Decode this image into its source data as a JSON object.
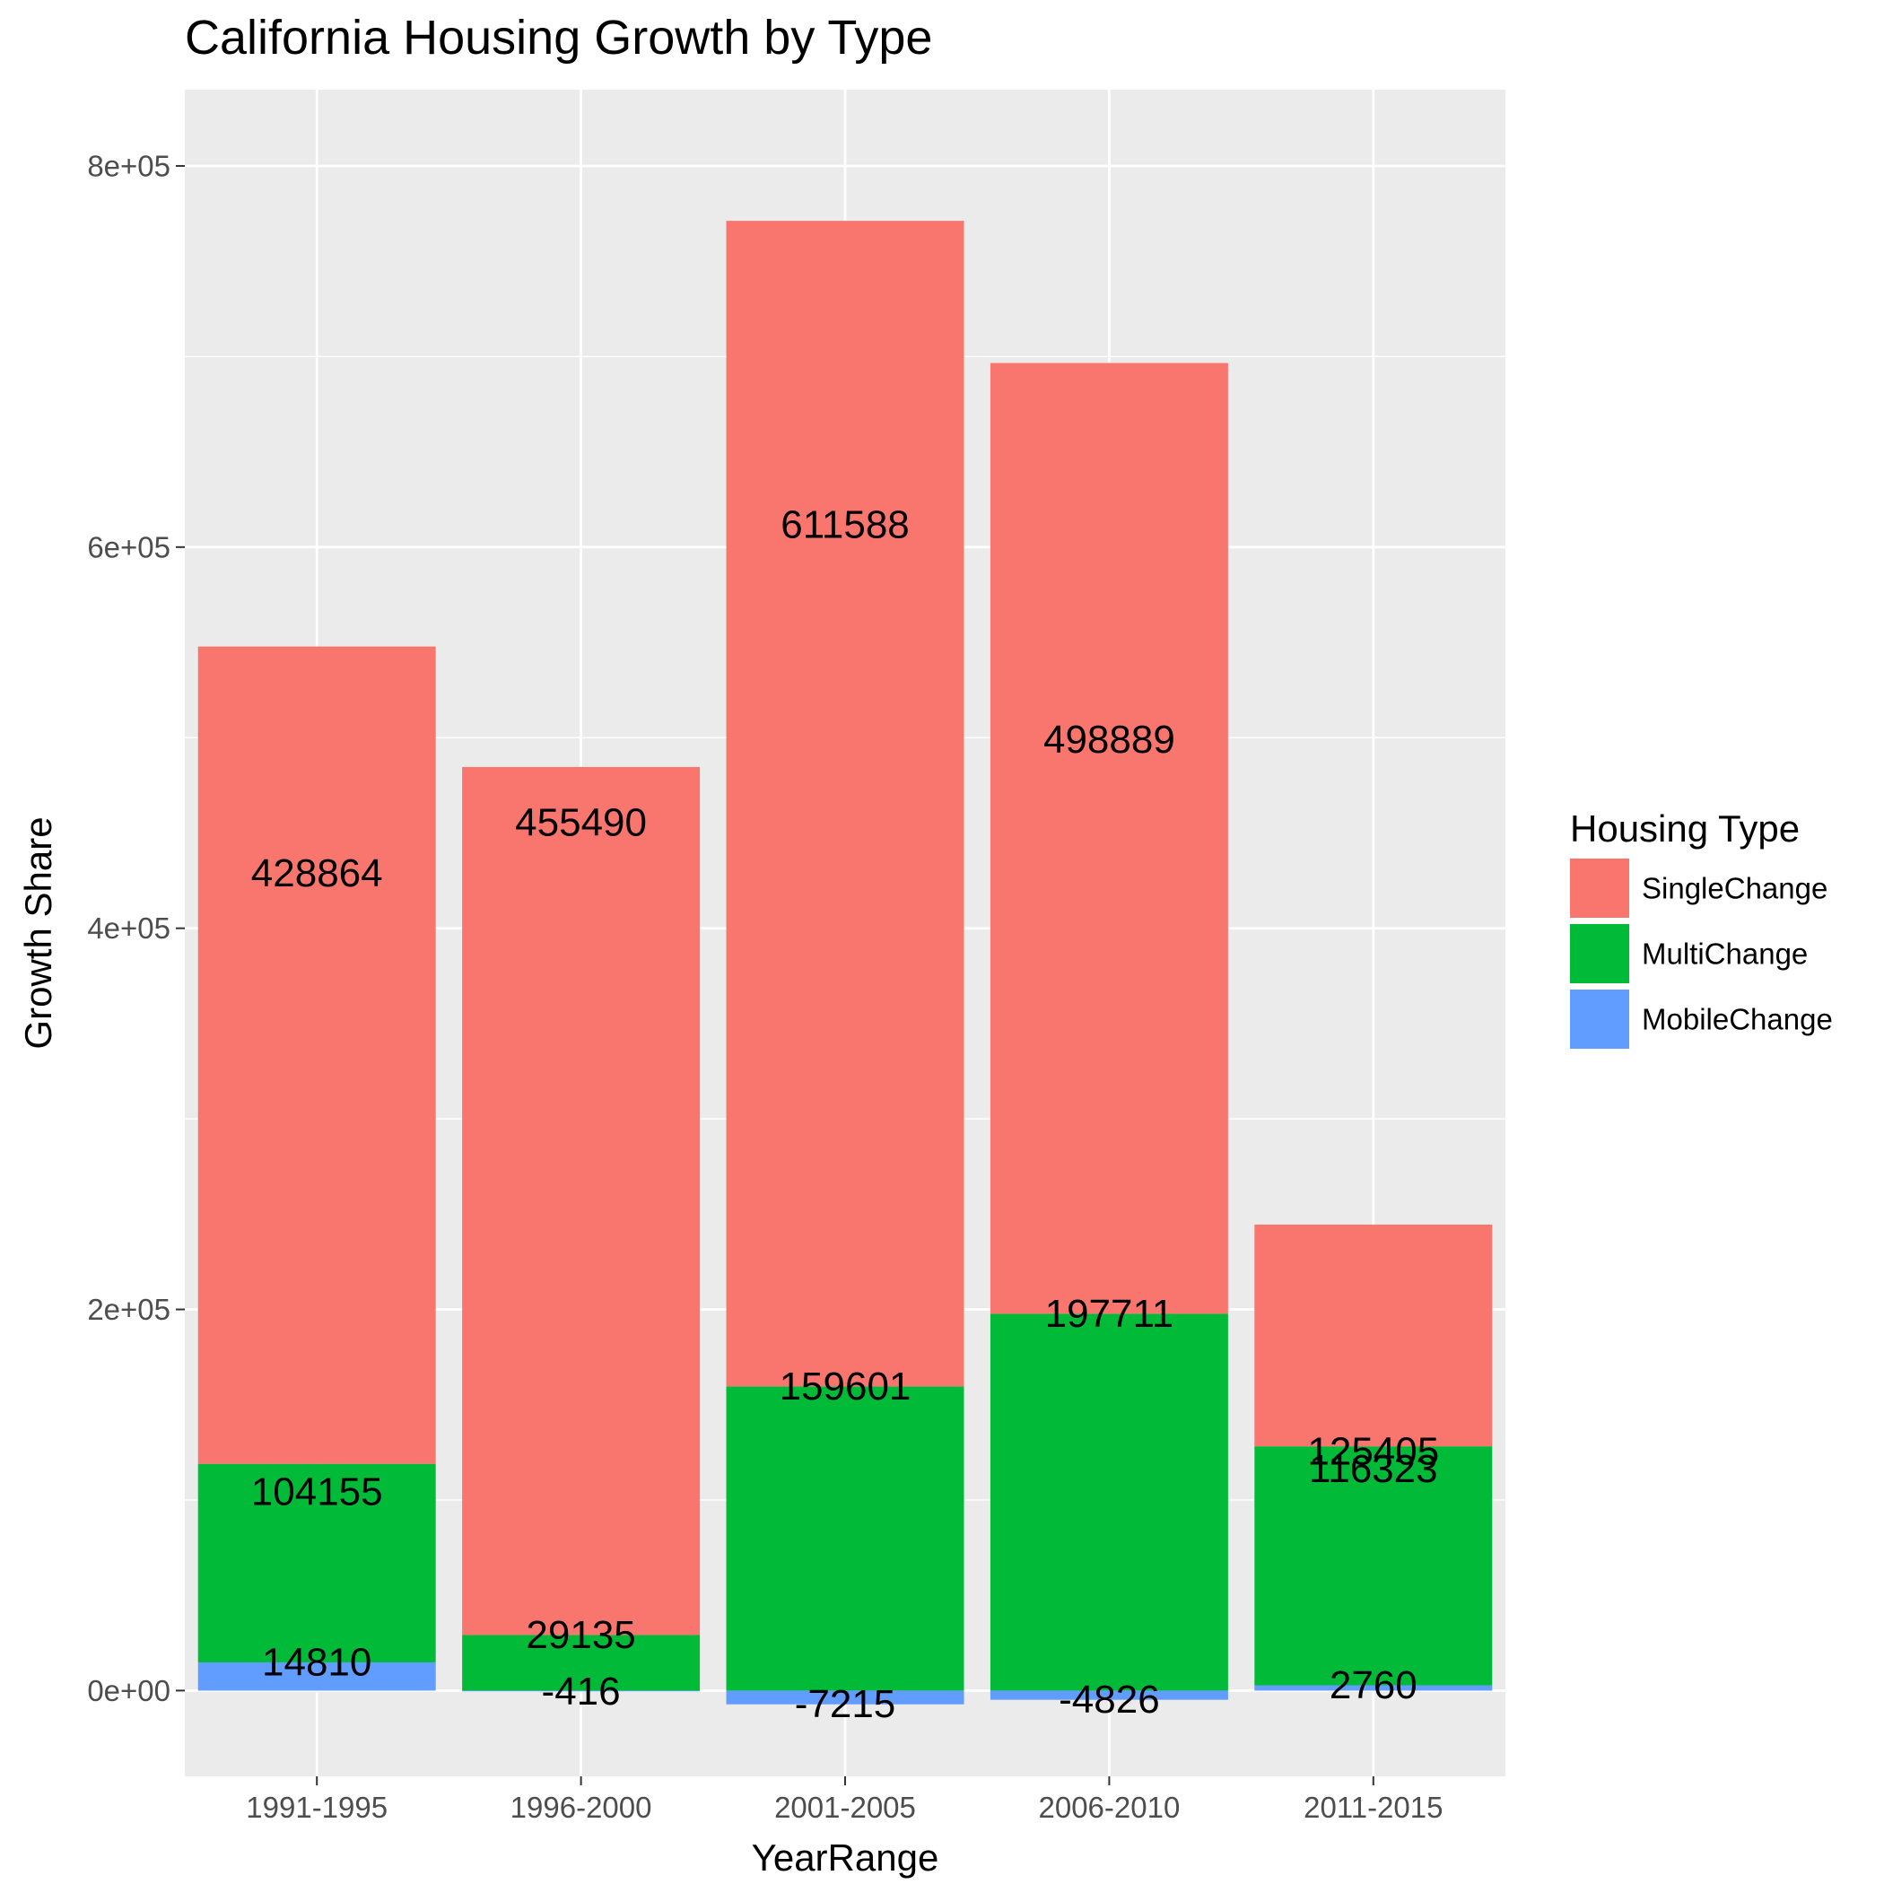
{
  "chart_data": {
    "type": "bar",
    "stacked": true,
    "title": "California Housing Growth by Type",
    "xlabel": "YearRange",
    "ylabel": "Growth Share",
    "categories": [
      "1991-1995",
      "1996-2000",
      "2001-2005",
      "2006-2010",
      "2011-2015"
    ],
    "ylim": [
      -45000,
      840000
    ],
    "yticks": [
      0,
      200000,
      400000,
      600000,
      800000
    ],
    "ytick_labels": [
      "0e+00",
      "2e+05",
      "4e+05",
      "6e+05",
      "8e+05"
    ],
    "grid": true,
    "legend": {
      "title": "Housing Type",
      "placement": "right"
    },
    "series": [
      {
        "name": "SingleChange",
        "color": "#F8766D",
        "values": [
          428864,
          455490,
          611588,
          498889,
          116323
        ]
      },
      {
        "name": "MultiChange",
        "color": "#00BA38",
        "values": [
          104155,
          29135,
          159601,
          197711,
          125405
        ]
      },
      {
        "name": "MobileChange",
        "color": "#619CFF",
        "values": [
          14810,
          -416,
          -7215,
          -4826,
          2760
        ]
      }
    ]
  }
}
